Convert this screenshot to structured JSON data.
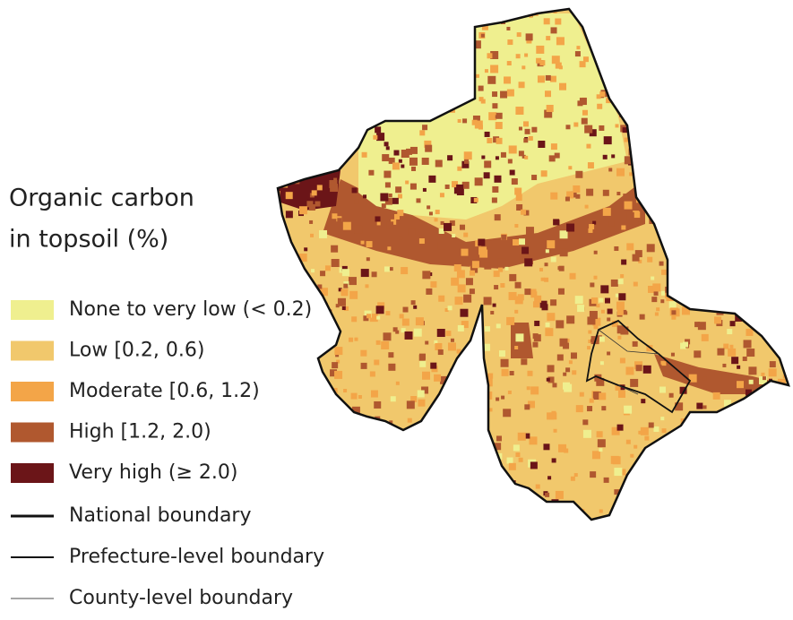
{
  "legend": {
    "title_lines": [
      "Organic carbon",
      "in topsoil (%)"
    ],
    "classes": [
      {
        "label": "None to very low (< 0.2)",
        "color": "#EFEF8F"
      },
      {
        "label": "Low [0.2, 0.6)",
        "color": "#F1C86C"
      },
      {
        "label": "Moderate [0.6, 1.2)",
        "color": "#F3A548"
      },
      {
        "label": "High [1.2, 2.0)",
        "color": "#B0582F"
      },
      {
        "label": "Very high (≥ 2.0)",
        "color": "#6B1518"
      }
    ],
    "boundaries": [
      {
        "label": "National boundary",
        "width": 3
      },
      {
        "label": "Prefecture-level boundary",
        "width": 2
      },
      {
        "label": "County-level boundary",
        "width": 0.8
      }
    ]
  }
}
